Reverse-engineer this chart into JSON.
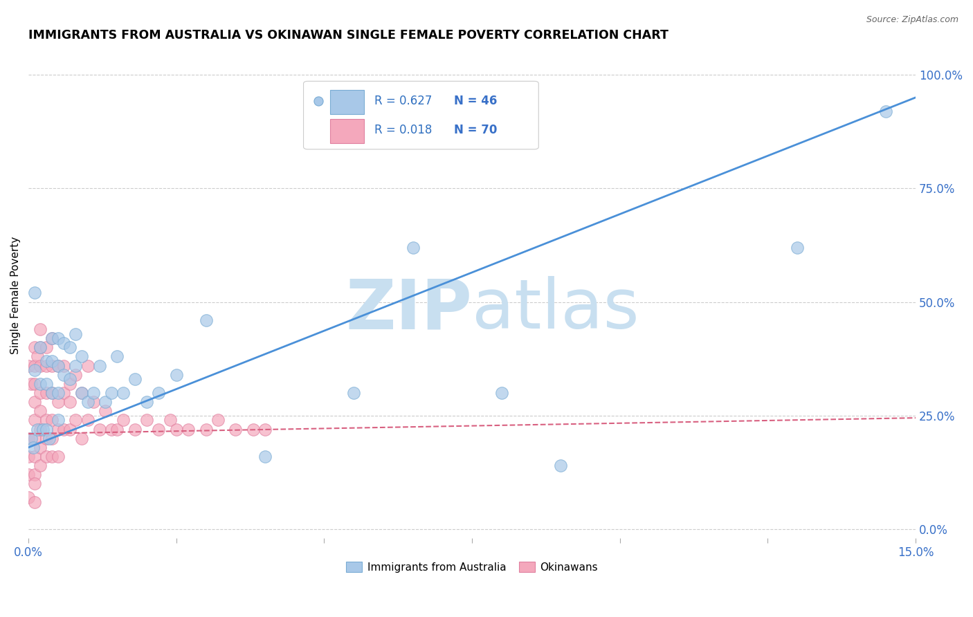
{
  "title": "IMMIGRANTS FROM AUSTRALIA VS OKINAWAN SINGLE FEMALE POVERTY CORRELATION CHART",
  "source": "Source: ZipAtlas.com",
  "ylabel_label": "Single Female Poverty",
  "right_yticks": [
    0.0,
    0.25,
    0.5,
    0.75,
    1.0
  ],
  "right_ytick_labels": [
    "0.0%",
    "25.0%",
    "50.0%",
    "75.0%",
    "100.0%"
  ],
  "xlim": [
    0.0,
    0.15
  ],
  "ylim": [
    -0.02,
    1.05
  ],
  "blue_R": 0.627,
  "blue_N": 46,
  "pink_R": 0.018,
  "pink_N": 70,
  "blue_color": "#a8c8e8",
  "blue_edge": "#7aacd4",
  "pink_color": "#f4a8bc",
  "pink_edge": "#e080a0",
  "trend_blue": "#4a90d8",
  "trend_pink": "#d86080",
  "watermark_color": "#c8dff0",
  "background_color": "#ffffff",
  "legend_R_color": "#3070c0",
  "legend_N_color": "#3870c8",
  "blue_x": [
    0.0005,
    0.0008,
    0.001,
    0.001,
    0.0015,
    0.002,
    0.002,
    0.0025,
    0.003,
    0.003,
    0.003,
    0.0035,
    0.004,
    0.004,
    0.004,
    0.005,
    0.005,
    0.005,
    0.005,
    0.006,
    0.006,
    0.007,
    0.007,
    0.008,
    0.008,
    0.009,
    0.009,
    0.01,
    0.011,
    0.012,
    0.013,
    0.014,
    0.015,
    0.016,
    0.018,
    0.02,
    0.022,
    0.025,
    0.03,
    0.04,
    0.055,
    0.065,
    0.08,
    0.09,
    0.13,
    0.145
  ],
  "blue_y": [
    0.2,
    0.18,
    0.52,
    0.35,
    0.22,
    0.4,
    0.32,
    0.22,
    0.37,
    0.32,
    0.22,
    0.2,
    0.42,
    0.37,
    0.3,
    0.42,
    0.36,
    0.3,
    0.24,
    0.41,
    0.34,
    0.4,
    0.33,
    0.43,
    0.36,
    0.38,
    0.3,
    0.28,
    0.3,
    0.36,
    0.28,
    0.3,
    0.38,
    0.3,
    0.33,
    0.28,
    0.3,
    0.34,
    0.46,
    0.16,
    0.3,
    0.62,
    0.3,
    0.14,
    0.62,
    0.92
  ],
  "pink_x": [
    0.0,
    0.0,
    0.0,
    0.0,
    0.0,
    0.0005,
    0.001,
    0.001,
    0.001,
    0.001,
    0.001,
    0.001,
    0.001,
    0.001,
    0.001,
    0.001,
    0.0015,
    0.002,
    0.002,
    0.002,
    0.002,
    0.002,
    0.002,
    0.002,
    0.002,
    0.003,
    0.003,
    0.003,
    0.003,
    0.003,
    0.003,
    0.004,
    0.004,
    0.004,
    0.004,
    0.004,
    0.004,
    0.005,
    0.005,
    0.005,
    0.005,
    0.006,
    0.006,
    0.006,
    0.007,
    0.007,
    0.007,
    0.008,
    0.008,
    0.009,
    0.009,
    0.01,
    0.01,
    0.011,
    0.012,
    0.013,
    0.014,
    0.015,
    0.016,
    0.018,
    0.02,
    0.022,
    0.024,
    0.025,
    0.027,
    0.03,
    0.032,
    0.035,
    0.038,
    0.04
  ],
  "pink_y": [
    0.36,
    0.2,
    0.16,
    0.12,
    0.07,
    0.32,
    0.4,
    0.36,
    0.32,
    0.28,
    0.24,
    0.2,
    0.16,
    0.12,
    0.1,
    0.06,
    0.38,
    0.44,
    0.4,
    0.36,
    0.3,
    0.26,
    0.22,
    0.18,
    0.14,
    0.4,
    0.36,
    0.3,
    0.24,
    0.2,
    0.16,
    0.42,
    0.36,
    0.3,
    0.24,
    0.2,
    0.16,
    0.36,
    0.28,
    0.22,
    0.16,
    0.36,
    0.3,
    0.22,
    0.32,
    0.28,
    0.22,
    0.34,
    0.24,
    0.3,
    0.2,
    0.36,
    0.24,
    0.28,
    0.22,
    0.26,
    0.22,
    0.22,
    0.24,
    0.22,
    0.24,
    0.22,
    0.24,
    0.22,
    0.22,
    0.22,
    0.24,
    0.22,
    0.22,
    0.22
  ],
  "blue_trend_x0": 0.0,
  "blue_trend_y0": 0.18,
  "blue_trend_x1": 0.15,
  "blue_trend_y1": 0.95,
  "pink_trend_x0": 0.0,
  "pink_trend_y0": 0.21,
  "pink_trend_x1": 0.15,
  "pink_trend_y1": 0.245
}
